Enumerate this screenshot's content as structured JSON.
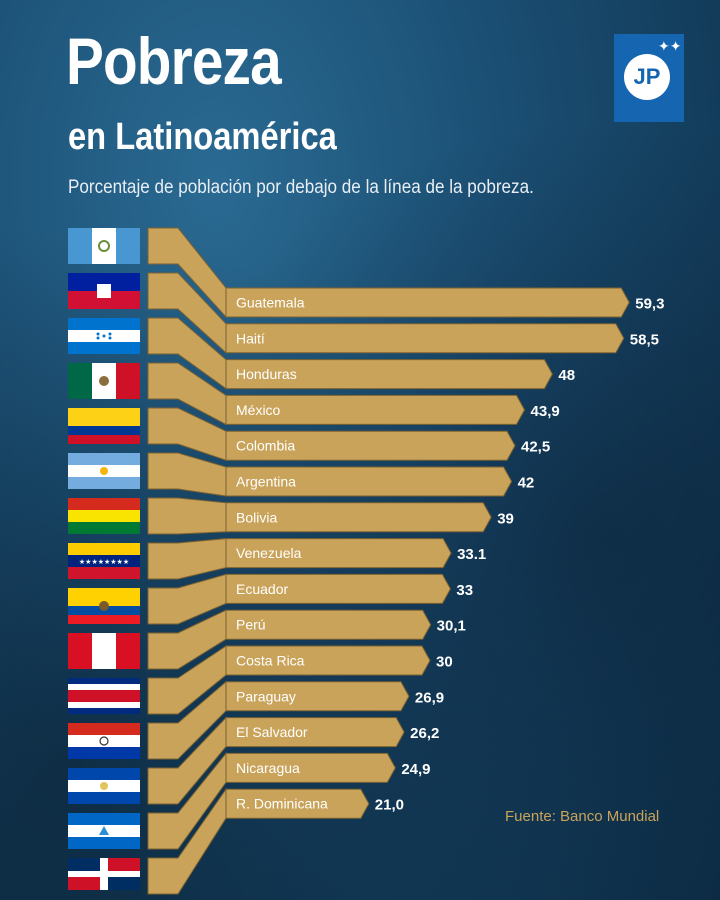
{
  "header": {
    "title": "Pobreza",
    "subtitle": "en Latinoamérica",
    "description": "Porcentaje de población por debajo de la línea de la pobreza."
  },
  "logo": {
    "text": "JP",
    "icon": "jp-logo-icon"
  },
  "source": "Fuente: Banco Mundial",
  "colors": {
    "bar": "#c9a35a",
    "bar_dark": "#a8853f",
    "text_light": "#ffffff"
  },
  "chart_data": {
    "type": "bar",
    "orientation": "horizontal",
    "title": "Pobreza en Latinoamérica",
    "subtitle": "Porcentaje de población por debajo de la línea de la pobreza.",
    "categories": [
      "Guatemala",
      "Haití",
      "Honduras",
      "México",
      "Colombia",
      "Argentina",
      "Bolivia",
      "Venezuela",
      "Ecuador",
      "Perú",
      "Costa Rica",
      "Paraguay",
      "El Salvador",
      "Nicaragua",
      "R. Dominicana"
    ],
    "values": [
      59.3,
      58.5,
      48,
      43.9,
      42.5,
      42,
      39,
      33.1,
      33,
      30.1,
      30,
      26.9,
      26.2,
      24.9,
      21.0
    ],
    "value_labels": [
      "59,3",
      "58,5",
      "48",
      "43,9",
      "42,5",
      "42",
      "39",
      "33.1",
      "33",
      "30,1",
      "30",
      "26,9",
      "26,2",
      "24,9",
      "21,0"
    ],
    "xlim": [
      0,
      60
    ],
    "source": "Fuente: Banco Mundial"
  }
}
